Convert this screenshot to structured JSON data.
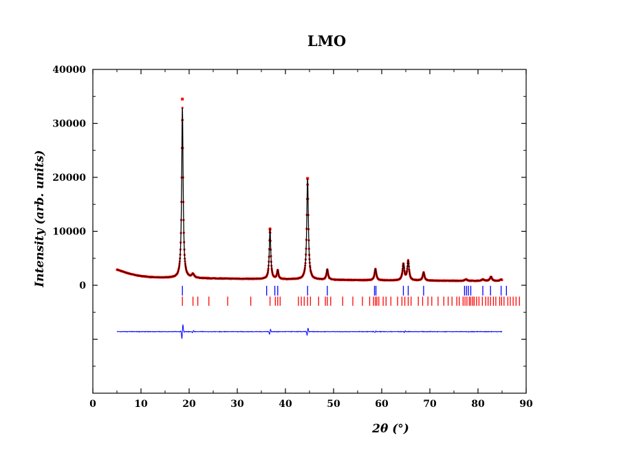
{
  "chart_data": {
    "type": "line",
    "title": "LMO",
    "xlabel": "2θ (°)",
    "ylabel": "Intensity (arb. units)",
    "xlim": [
      0,
      90
    ],
    "ylim": [
      -20000,
      40000
    ],
    "xticks": [
      0,
      10,
      20,
      30,
      40,
      50,
      60,
      70,
      80,
      90
    ],
    "yticks": [
      0,
      10000,
      20000,
      30000,
      40000
    ],
    "ytick_labels": [
      "0",
      "10000",
      "20000",
      "30000",
      "40000"
    ],
    "background": [
      [
        5,
        2900
      ],
      [
        6,
        2600
      ],
      [
        7,
        2300
      ],
      [
        8,
        2050
      ],
      [
        9,
        1850
      ],
      [
        10,
        1700
      ],
      [
        11,
        1600
      ],
      [
        12,
        1500
      ],
      [
        13,
        1450
      ],
      [
        14,
        1420
      ],
      [
        15,
        1400
      ],
      [
        16,
        1380
      ],
      [
        17,
        1350
      ],
      [
        20,
        1300
      ],
      [
        25,
        1250
      ],
      [
        30,
        1200
      ],
      [
        35,
        1150
      ],
      [
        40,
        1100
      ],
      [
        45,
        1050
      ],
      [
        50,
        1000
      ],
      [
        55,
        950
      ],
      [
        60,
        900
      ],
      [
        65,
        880
      ],
      [
        70,
        850
      ],
      [
        75,
        820
      ],
      [
        80,
        800
      ],
      [
        85,
        780
      ]
    ],
    "peaks": [
      {
        "pos": 18.6,
        "height": 31500,
        "width": 0.18
      },
      {
        "pos": 20.8,
        "height": 700,
        "width": 0.3
      },
      {
        "pos": 36.8,
        "height": 9300,
        "width": 0.18
      },
      {
        "pos": 38.4,
        "height": 1600,
        "width": 0.18
      },
      {
        "pos": 44.6,
        "height": 18700,
        "width": 0.2
      },
      {
        "pos": 48.7,
        "height": 1900,
        "width": 0.2
      },
      {
        "pos": 58.7,
        "height": 2100,
        "width": 0.22
      },
      {
        "pos": 64.5,
        "height": 3000,
        "width": 0.22
      },
      {
        "pos": 65.5,
        "height": 3600,
        "width": 0.22
      },
      {
        "pos": 68.7,
        "height": 1500,
        "width": 0.22
      },
      {
        "pos": 77.5,
        "height": 300,
        "width": 0.3
      },
      {
        "pos": 81.0,
        "height": 300,
        "width": 0.3
      },
      {
        "pos": 82.7,
        "height": 800,
        "width": 0.25
      },
      {
        "pos": 84.8,
        "height": 300,
        "width": 0.25
      }
    ],
    "series": [
      {
        "kind": "observed",
        "color": "#ff0000",
        "x_range": [
          5,
          85
        ]
      },
      {
        "kind": "calculated",
        "color": "#000000",
        "x_range": [
          5,
          85
        ]
      },
      {
        "kind": "difference",
        "color": "#0000ff",
        "x_range": [
          5,
          85
        ],
        "offset": -8600
      }
    ],
    "observed_max_points": [
      [
        18.6,
        34500
      ],
      [
        44.6,
        19800
      ],
      [
        36.8,
        10400
      ]
    ],
    "difference_features": [
      {
        "pos": 18.6,
        "amp": 1800
      },
      {
        "pos": 36.8,
        "amp": 600
      },
      {
        "pos": 44.6,
        "amp": 900
      },
      {
        "pos": 20.8,
        "amp": 250
      },
      {
        "pos": 58.7,
        "amp": 200
      },
      {
        "pos": 64.8,
        "amp": 200
      }
    ],
    "reflection_markers": [
      {
        "color": "#0000ff",
        "y_range": [
          -1900,
          -100
        ],
        "positions": [
          18.6,
          36.1,
          37.8,
          38.4,
          44.6,
          48.7,
          58.5,
          58.8,
          64.5,
          65.5,
          68.7,
          77.2,
          77.6,
          78.0,
          78.5,
          81.0,
          82.6,
          84.8,
          85.9
        ]
      },
      {
        "color": "#ff0000",
        "y_range": [
          -3800,
          -2100
        ],
        "positions": [
          18.6,
          20.8,
          21.8,
          24.1,
          28.0,
          32.8,
          36.8,
          37.9,
          38.4,
          38.9,
          42.7,
          43.3,
          43.9,
          44.6,
          45.2,
          46.9,
          48.3,
          48.7,
          49.4,
          51.9,
          54.0,
          56.0,
          57.5,
          58.3,
          58.7,
          59.0,
          59.4,
          60.3,
          60.9,
          61.9,
          63.3,
          64.2,
          64.8,
          65.5,
          66.1,
          67.6,
          68.5,
          69.6,
          70.4,
          71.7,
          72.9,
          73.8,
          74.6,
          75.6,
          76.1,
          76.9,
          77.3,
          77.7,
          78.2,
          78.5,
          78.9,
          79.2,
          79.7,
          80.2,
          80.9,
          81.6,
          82.1,
          82.6,
          83.2,
          83.7,
          84.5,
          84.9,
          85.4,
          86.2,
          86.7,
          87.3,
          87.9,
          88.6
        ]
      }
    ]
  }
}
